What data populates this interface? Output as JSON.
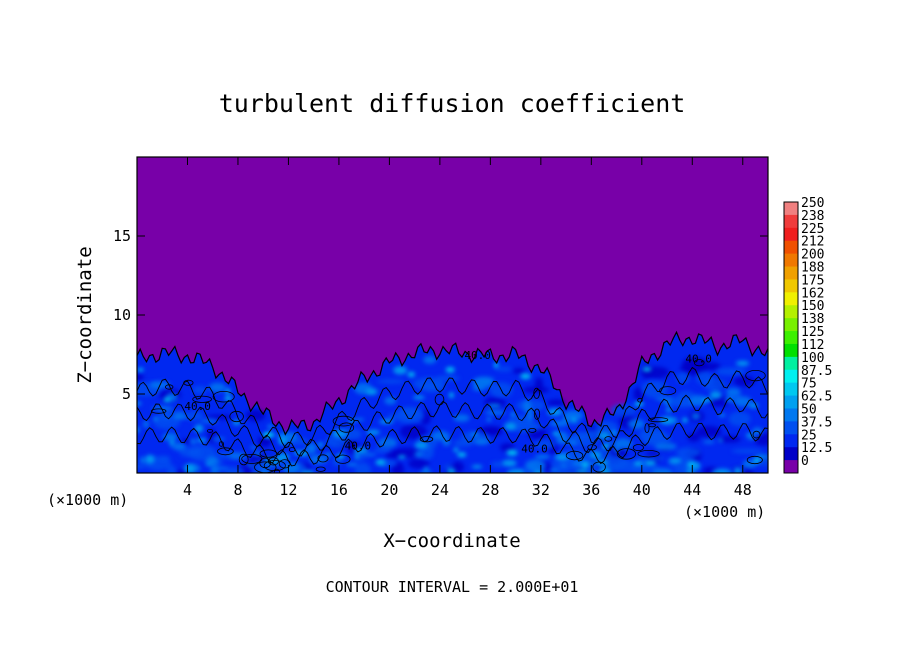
{
  "chart_data": {
    "type": "heatmap",
    "title": "turbulent diffusion coefficient",
    "xlabel": "X−coordinate",
    "ylabel": "Z−coordinate",
    "x_unit_left": "(×1000 m)",
    "x_unit_right": "(×1000 m)",
    "footer": "CONTOUR INTERVAL = 2.000E+01",
    "xlim": [
      0,
      50
    ],
    "ylim": [
      0,
      20
    ],
    "x_ticks": [
      4,
      8,
      12,
      16,
      20,
      24,
      28,
      32,
      36,
      40,
      44,
      48
    ],
    "y_ticks": [
      5,
      10,
      15
    ],
    "contour_labels": [
      "40.0",
      "40.0",
      "40.0",
      "40.0",
      "40.0"
    ],
    "colorbar": {
      "labels": [
        "250",
        "238",
        "225",
        "212",
        "200",
        "188",
        "175",
        "162",
        "150",
        "138",
        "125",
        "112",
        "100",
        "87.5",
        "75",
        "62.5",
        "50",
        "37.5",
        "25",
        "12.5",
        "0"
      ],
      "colors": [
        "#f08080",
        "#f03c3c",
        "#f01e1e",
        "#f05000",
        "#f07800",
        "#f0a000",
        "#f0c800",
        "#f0f000",
        "#b4f000",
        "#78f000",
        "#3cf000",
        "#00e000",
        "#00f0a0",
        "#00f0f0",
        "#00c8f0",
        "#00a0f0",
        "#0078f0",
        "#0050f0",
        "#0028f0",
        "#0000c8",
        "#7800a8"
      ]
    },
    "field_background": "#7800a8",
    "turbulent_layer_top_profile": {
      "x": [
        0,
        2,
        4,
        6,
        8,
        10,
        12,
        14,
        16,
        18,
        20,
        22,
        24,
        26,
        28,
        30,
        32,
        34,
        36,
        38,
        40,
        42,
        44,
        46,
        48,
        50
      ],
      "z": [
        7.2,
        7.6,
        7.4,
        6.8,
        5.2,
        3.8,
        2.8,
        3.2,
        4.6,
        6.0,
        7.0,
        7.6,
        7.8,
        7.6,
        7.4,
        7.5,
        6.6,
        4.6,
        3.2,
        3.8,
        6.8,
        8.2,
        8.6,
        8.0,
        8.4,
        7.4
      ]
    }
  }
}
